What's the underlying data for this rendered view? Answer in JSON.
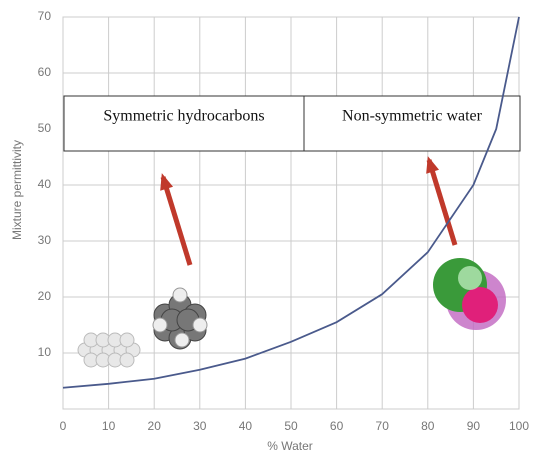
{
  "chart_data": {
    "type": "line",
    "x_label": "% Water",
    "y_label": "Mixture permittivity",
    "annotations": [
      "Symmetric hydrocarbons",
      "Non-symmetric water"
    ],
    "x": [
      0,
      10,
      20,
      30,
      40,
      50,
      60,
      70,
      80,
      90,
      95,
      100
    ],
    "series": [
      {
        "color": "#4a5a8c",
        "values": [
          3.8,
          4.5,
          5.4,
          7,
          9,
          12,
          15.5,
          20.5,
          28,
          40,
          50,
          70
        ]
      }
    ],
    "xlim": [
      0,
      100
    ],
    "xticks": [
      0,
      10,
      20,
      30,
      40,
      50,
      60,
      70,
      80,
      90,
      100
    ],
    "ylim": [
      0,
      70
    ],
    "yticks": [
      10,
      20,
      30,
      40,
      50,
      60,
      70
    ],
    "grid": true
  }
}
